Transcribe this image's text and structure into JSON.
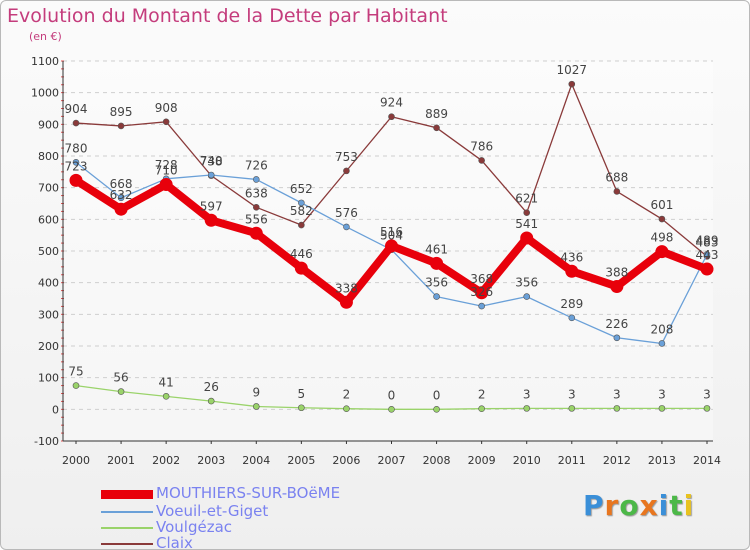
{
  "title": "Evolution du Montant de la Dette par Habitant",
  "subtitle": "(en €)",
  "logo": {
    "letters": [
      "P",
      "r",
      "o",
      "x",
      "i",
      "t",
      "i"
    ],
    "colors": [
      "#3a8fd8",
      "#e8761f",
      "#4cb848",
      "#e8761f",
      "#3a8fd8",
      "#4cb848",
      "#e8c21f"
    ]
  },
  "chart_data": {
    "type": "line",
    "x": [
      "2000",
      "2001",
      "2002",
      "2003",
      "2004",
      "2005",
      "2006",
      "2007",
      "2008",
      "2009",
      "2010",
      "2011",
      "2012",
      "2013",
      "2014"
    ],
    "ylim": [
      -100,
      1100
    ],
    "yticks": [
      "-100",
      "0",
      "100",
      "200",
      "300",
      "400",
      "500",
      "600",
      "700",
      "800",
      "900",
      "1000",
      "1100"
    ],
    "grid": "horizontal dashed",
    "legend_position": "bottom-left",
    "series": [
      {
        "name": "MOUTHIERS-SUR-BOëME",
        "color": "#e8000b",
        "values": [
          723,
          632,
          710,
          597,
          556,
          446,
          338,
          516,
          461,
          368,
          541,
          436,
          388,
          498,
          443
        ],
        "labels": [
          "723",
          "632",
          "710",
          "597",
          "556",
          "446",
          "338",
          "516",
          "461",
          "368",
          "541",
          "436",
          "388",
          "498",
          "443"
        ]
      },
      {
        "name": "Voeuil-et-Giget",
        "color": "#6aa0d8",
        "values": [
          780,
          668,
          728,
          740,
          726,
          652,
          576,
          504,
          356,
          326,
          356,
          289,
          226,
          208,
          489
        ],
        "labels": [
          "780",
          "668",
          "728",
          "740",
          "726",
          "652",
          "576",
          "504",
          "356",
          "326",
          "356",
          "289",
          "226",
          "208",
          "489"
        ]
      },
      {
        "name": "Voulgézac",
        "color": "#9ad36a",
        "values": [
          75,
          56,
          41,
          26,
          9,
          5,
          2,
          0,
          0,
          2,
          3,
          3,
          3,
          3,
          3
        ],
        "labels": [
          "75",
          "56",
          "41",
          "26",
          "9",
          "5",
          "2",
          "0",
          "0",
          "2",
          "3",
          "3",
          "3",
          "3",
          "3"
        ]
      },
      {
        "name": "Claix",
        "color": "#8a3a3a",
        "values": [
          904,
          895,
          908,
          738,
          638,
          582,
          753,
          924,
          889,
          786,
          621,
          1027,
          688,
          601,
          483
        ],
        "labels": [
          "904",
          "895",
          "908",
          "738",
          "638",
          "582",
          "753",
          "924",
          "889",
          "786",
          "621",
          "1027",
          "688",
          "601",
          "483"
        ]
      }
    ]
  }
}
